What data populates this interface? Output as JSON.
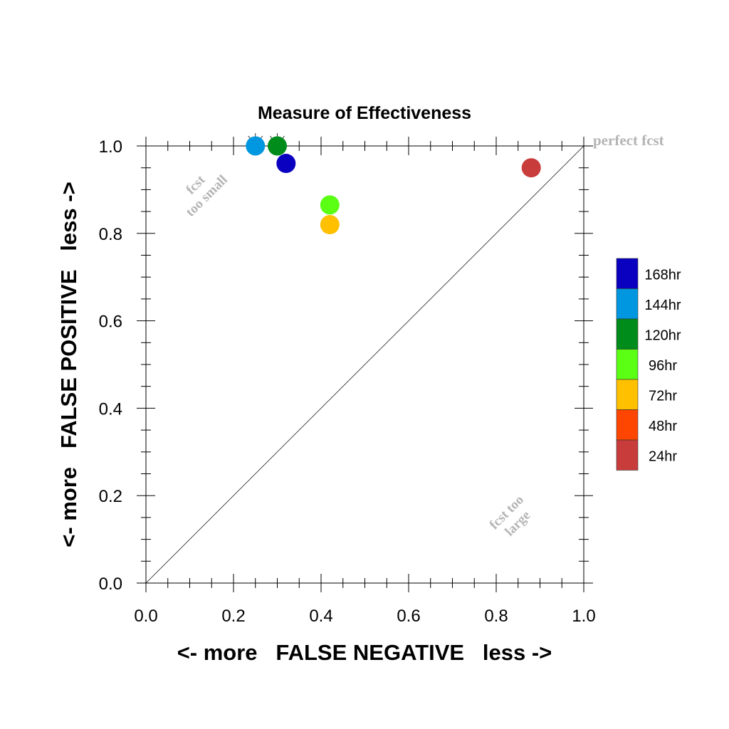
{
  "chart_data": {
    "type": "scatter",
    "title": "Measure of Effectiveness",
    "xlabel": "<- more   FALSE NEGATIVE   less ->",
    "ylabel": "<- more   FALSE POSITIVE   less ->",
    "xlim": [
      0,
      1
    ],
    "ylim": [
      0,
      1
    ],
    "x_ticks": [
      "0.0",
      "0.2",
      "0.4",
      "0.6",
      "0.8",
      "1.0"
    ],
    "y_ticks": [
      "0.0",
      "0.2",
      "0.4",
      "0.6",
      "0.8",
      "1.0"
    ],
    "grid": false,
    "legend_position": "right",
    "diagonal_line": true,
    "annotations": {
      "perfect": "perfect fcst",
      "too_small_line1": "fcst",
      "too_small_line2": "too small",
      "too_large_line1": "fcst too",
      "too_large_line2": "large"
    },
    "series": [
      {
        "name": "168hr",
        "color": "#0a00c0",
        "points": [
          {
            "x": 0.32,
            "y": 0.96
          }
        ]
      },
      {
        "name": "144hr",
        "color": "#0096e0",
        "points": [
          {
            "x": 0.25,
            "y": 1.0
          }
        ]
      },
      {
        "name": "120hr",
        "color": "#008c1a",
        "points": [
          {
            "x": 0.3,
            "y": 1.0
          }
        ]
      },
      {
        "name": "96hr",
        "color": "#5aff14",
        "points": [
          {
            "x": 0.42,
            "y": 0.865
          }
        ]
      },
      {
        "name": "72hr",
        "color": "#ffc000",
        "points": [
          {
            "x": 0.42,
            "y": 0.82
          }
        ]
      },
      {
        "name": "48hr",
        "color": "#ff4600",
        "points": []
      },
      {
        "name": "24hr",
        "color": "#c83c3c",
        "points": [
          {
            "x": 0.88,
            "y": 0.95
          }
        ]
      }
    ]
  }
}
